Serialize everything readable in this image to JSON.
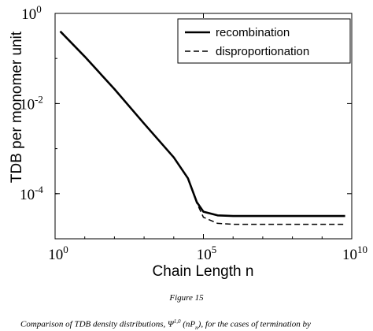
{
  "chart_data": {
    "type": "line",
    "xscale": "log",
    "yscale": "log",
    "xlim": [
      1,
      10000000000
    ],
    "ylim": [
      1e-05,
      1
    ],
    "xlabel": "Chain Length n",
    "ylabel": "TDB per monomer unit",
    "xticks": [
      {
        "value": 1,
        "base": "10",
        "exp": "0"
      },
      {
        "value": 100000,
        "base": "10",
        "exp": "5"
      },
      {
        "value": 10000000000,
        "base": "10",
        "exp": "10"
      }
    ],
    "yticks": [
      {
        "value": 1,
        "base": "10",
        "exp": "0"
      },
      {
        "value": 0.01,
        "base": "10",
        "exp": "-2"
      },
      {
        "value": 0.0001,
        "base": "10",
        "exp": "-4"
      }
    ],
    "legend_position": "top-right",
    "grid": false,
    "series": [
      {
        "name": "recombination",
        "style": "solid",
        "color": "#000000",
        "x": [
          1.5,
          10,
          100,
          1000,
          10000,
          30000,
          60000,
          100000,
          300000,
          1000000,
          10000000,
          100000000,
          1000000000,
          6000000000
        ],
        "y": [
          0.4,
          0.11,
          0.021,
          0.0036,
          0.00064,
          0.00022,
          6.5e-05,
          4e-05,
          3.3e-05,
          3.2e-05,
          3.2e-05,
          3.2e-05,
          3.2e-05,
          3.2e-05
        ]
      },
      {
        "name": "disproportionation",
        "style": "dashed",
        "color": "#000000",
        "x": [
          1.5,
          10,
          100,
          1000,
          10000,
          30000,
          60000,
          100000,
          300000,
          1000000,
          10000000,
          100000000,
          1000000000,
          6000000000
        ],
        "y": [
          0.4,
          0.11,
          0.021,
          0.0036,
          0.00064,
          0.00022,
          6.2e-05,
          3e-05,
          2.2e-05,
          2.1e-05,
          2.1e-05,
          2.1e-05,
          2.1e-05,
          2.1e-05
        ]
      }
    ]
  },
  "caption": {
    "figure_label": "Figure 15",
    "text_prefix": "Comparison of TDB density distributions, ",
    "symbol": "Ψ",
    "symbol_sup": "1,0",
    "text_mid": " (nP",
    "text_suffix": "), for the cases of termination by"
  }
}
